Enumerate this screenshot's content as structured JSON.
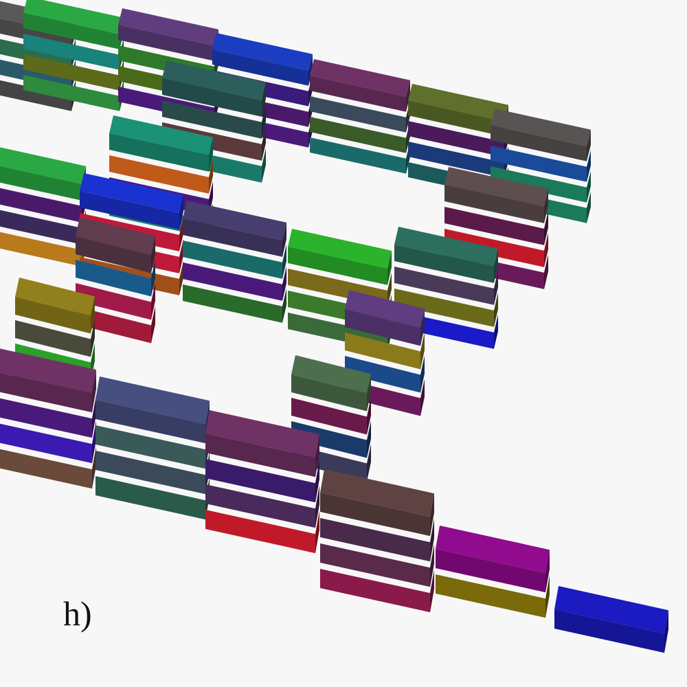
{
  "figure": {
    "panel_label": "h)",
    "background": "#f7f7f7"
  },
  "stacks": [
    {
      "name": "stack-row1-1",
      "colors": [
        "#555555",
        "#2b6c4e",
        "#2a5a6a",
        "#444444"
      ]
    },
    {
      "name": "stack-row1-2",
      "colors": [
        "#27a040",
        "#19827a",
        "#5d6a1a",
        "#2e8a3c"
      ]
    },
    {
      "name": "stack-row1-3",
      "colors": [
        "#5a3a78",
        "#2f7a2a",
        "#4a6a1a",
        "#4a1a7a"
      ]
    },
    {
      "name": "stack-row1-4",
      "colors": [
        "#1a3ab8",
        "#3a1a7a",
        "#4a1a6a",
        "#4a1a7a"
      ]
    },
    {
      "name": "stack-row1-5",
      "colors": [
        "#6a3060",
        "#3a4a5a",
        "#3a5a2a",
        "#1a6a6a"
      ]
    },
    {
      "name": "stack-row1-6",
      "colors": [
        "#5a6a2a",
        "#4a1a5a",
        "#1a3a7a",
        "#1a5a5a"
      ]
    },
    {
      "name": "stack-row1-7",
      "colors": [
        "#555050",
        "#1a4a9a",
        "#1a7a5a",
        "#1a7a5a"
      ]
    },
    {
      "name": "stack-row2-1",
      "colors": [
        "#1a8a70",
        "#c05a1a",
        "#4a1a7a",
        "#1a7a6a"
      ]
    },
    {
      "name": "stack-row2-2",
      "colors": [
        "#2a5a58",
        "#2a4a4a",
        "#5a3a3a",
        "#1a7a6a"
      ]
    },
    {
      "name": "stack-row2-3",
      "colors": [
        "#1a30c8",
        "#c01a3a",
        "#c01a3a",
        "#a0501a"
      ]
    },
    {
      "name": "stack-row2-4",
      "colors": [
        "#27a040",
        "#4a1a6a",
        "#3a2a5a",
        "#b87a1a"
      ]
    },
    {
      "name": "stack-row2-5",
      "colors": [
        "#443a6a",
        "#1a6a6a",
        "#4a1a7a",
        "#2a6a2a"
      ]
    },
    {
      "name": "stack-row2-6",
      "colors": [
        "#2aaa2a",
        "#7a6a1a",
        "#3a7a2a",
        "#3a6a3a"
      ]
    },
    {
      "name": "stack-row2-7",
      "colors": [
        "#2a6a5a",
        "#4a3a5a",
        "#6a6a1a",
        "#1a1ac8"
      ]
    },
    {
      "name": "stack-row2-8",
      "colors": [
        "#5a4a4a",
        "#5a1a4a",
        "#c01a2a",
        "#6a1a5a"
      ]
    },
    {
      "name": "stack-row3-1",
      "colors": [
        "#5a3a4a",
        "#1a5a8a",
        "#a01a4a",
        "#a01a3a"
      ]
    },
    {
      "name": "stack-row3-2",
      "colors": [
        "#8a7a1a",
        "#4a4a3a",
        "#2aa02a",
        "#2a8a2a"
      ]
    },
    {
      "name": "stack-row3-3",
      "colors": [
        "#5a3a7a",
        "#8a7a1a",
        "#1a4a8a",
        "#6a1a5a"
      ]
    },
    {
      "name": "stack-row3-4",
      "colors": [
        "#4a6a4a",
        "#6a1a4a",
        "#1a3a6a",
        "#3a3a5a"
      ]
    },
    {
      "name": "stack-row4-1",
      "colors": [
        "#6a3060",
        "#4a1a7a",
        "#3a1ab0",
        "#6a4a3a"
      ]
    },
    {
      "name": "stack-row4-2",
      "colors": [
        "#444a7a",
        "#3a5a5a",
        "#3a4a5a",
        "#2a5a4a"
      ]
    },
    {
      "name": "stack-row4-3",
      "colors": [
        "#6a3060",
        "#3a1a6a",
        "#4a2a5a",
        "#c01a2a"
      ]
    },
    {
      "name": "stack-row4-4",
      "colors": [
        "#5a4040",
        "#4a2a4a",
        "#5a2a4a",
        "#8a1a4a"
      ]
    },
    {
      "name": "stack-row4-5",
      "colors": [
        "#8a0a88",
        "#7a6a0a"
      ]
    },
    {
      "name": "stack-row4-6",
      "colors": [
        "#1a1ab8"
      ]
    }
  ]
}
